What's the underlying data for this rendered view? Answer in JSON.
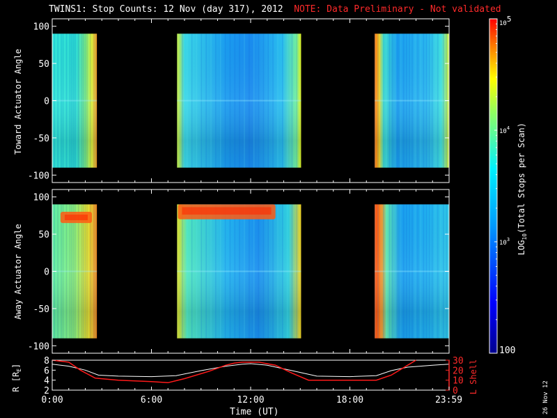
{
  "header": {
    "title": "TWINS1: Stop Counts: 12 Nov (day 317), 2012",
    "note": "NOTE: Data Preliminary - Not validated"
  },
  "stamp": "26 Nov 12",
  "chart_data": [
    {
      "type": "heatmap",
      "panel": "toward",
      "ylabel": "Toward Actuator Angle",
      "ylim": [
        -110,
        110
      ],
      "y_range_data": [
        -90,
        90
      ],
      "yticks": [
        -100,
        -50,
        0,
        50,
        100
      ],
      "data_intervals_hours": [
        [
          0.0,
          2.7
        ],
        [
          7.55,
          15.05
        ],
        [
          19.5,
          23.98
        ]
      ],
      "background_log10_counts": [
        3.4,
        3.3,
        3.0,
        3.1,
        3.2
      ]
    },
    {
      "type": "heatmap",
      "panel": "away",
      "ylabel": "Away Actuator Angle",
      "ylim": [
        -110,
        110
      ],
      "y_range_data": [
        -90,
        90
      ],
      "yticks": [
        -100,
        -50,
        0,
        50,
        100
      ],
      "data_intervals_hours": [
        [
          0.0,
          2.7
        ],
        [
          7.55,
          15.05
        ],
        [
          19.5,
          23.98
        ]
      ],
      "high_count_regions": [
        {
          "t": [
            0.5,
            2.4
          ],
          "angle": [
            65,
            80
          ],
          "log10_counts": 4.7
        },
        {
          "t": [
            7.6,
            13.5
          ],
          "angle": [
            70,
            90
          ],
          "log10_counts": 4.8
        }
      ]
    },
    {
      "type": "line",
      "panel": "orbit",
      "ylabel_left": "R [R",
      "ylabel_left_sub": "E",
      "ylabel_left_end": "]",
      "ylabel_right": "L Shell",
      "y_left_ticks": [
        2,
        4,
        6,
        8
      ],
      "y_left_lim": [
        2,
        8
      ],
      "y_right_ticks": [
        0,
        10,
        20,
        30
      ],
      "y_right_lim": [
        0,
        30
      ],
      "xlim_hours": [
        0,
        24
      ],
      "xticks": [
        "0:00",
        "6:00",
        "12:00",
        "18:00",
        "23:59"
      ],
      "xlabel": "Time (UT)",
      "series": [
        {
          "axis": "left",
          "color": "#ffffff",
          "x": [
            0,
            1,
            2,
            2.8,
            4,
            6,
            7.5,
            9,
            10.5,
            11.5,
            12,
            13,
            14.5,
            16,
            18,
            19.6,
            20.5,
            21.5,
            23,
            24
          ],
          "y": [
            7.2,
            6.8,
            6.0,
            5.0,
            4.8,
            4.7,
            4.9,
            5.9,
            6.8,
            7.2,
            7.3,
            7.0,
            5.9,
            4.8,
            4.7,
            4.9,
            5.9,
            6.6,
            7.0,
            7.2
          ]
        },
        {
          "axis": "right",
          "color": "#ff1a1a",
          "x": [
            0.0,
            1.0,
            1.7,
            2.6,
            4.0,
            6.0,
            7.0,
            8.0,
            9.5,
            10.5,
            11.0,
            11.5,
            12.5,
            13.5,
            14.5,
            15.5,
            17,
            18.5,
            19.6,
            20.5,
            21.5,
            22.0
          ],
          "y": [
            30,
            28,
            20,
            12,
            10,
            8.5,
            7.5,
            11.5,
            19,
            25,
            27,
            28,
            28,
            25,
            17,
            10,
            10,
            10,
            10,
            15,
            25,
            30
          ]
        }
      ]
    }
  ],
  "colorbar": {
    "label": "LOG",
    "label_sub": "10",
    "label_end": "(Total Stops per Scan)",
    "ticks": [
      {
        "base": "10",
        "exp": "5",
        "value": 5
      },
      {
        "base": "10",
        "exp": "4",
        "value": 4
      },
      {
        "base": "10",
        "exp": "3",
        "value": 3
      },
      {
        "base": "100",
        "exp": "",
        "value": 2
      }
    ],
    "range_log10": [
      2,
      5
    ],
    "scale": "log"
  }
}
